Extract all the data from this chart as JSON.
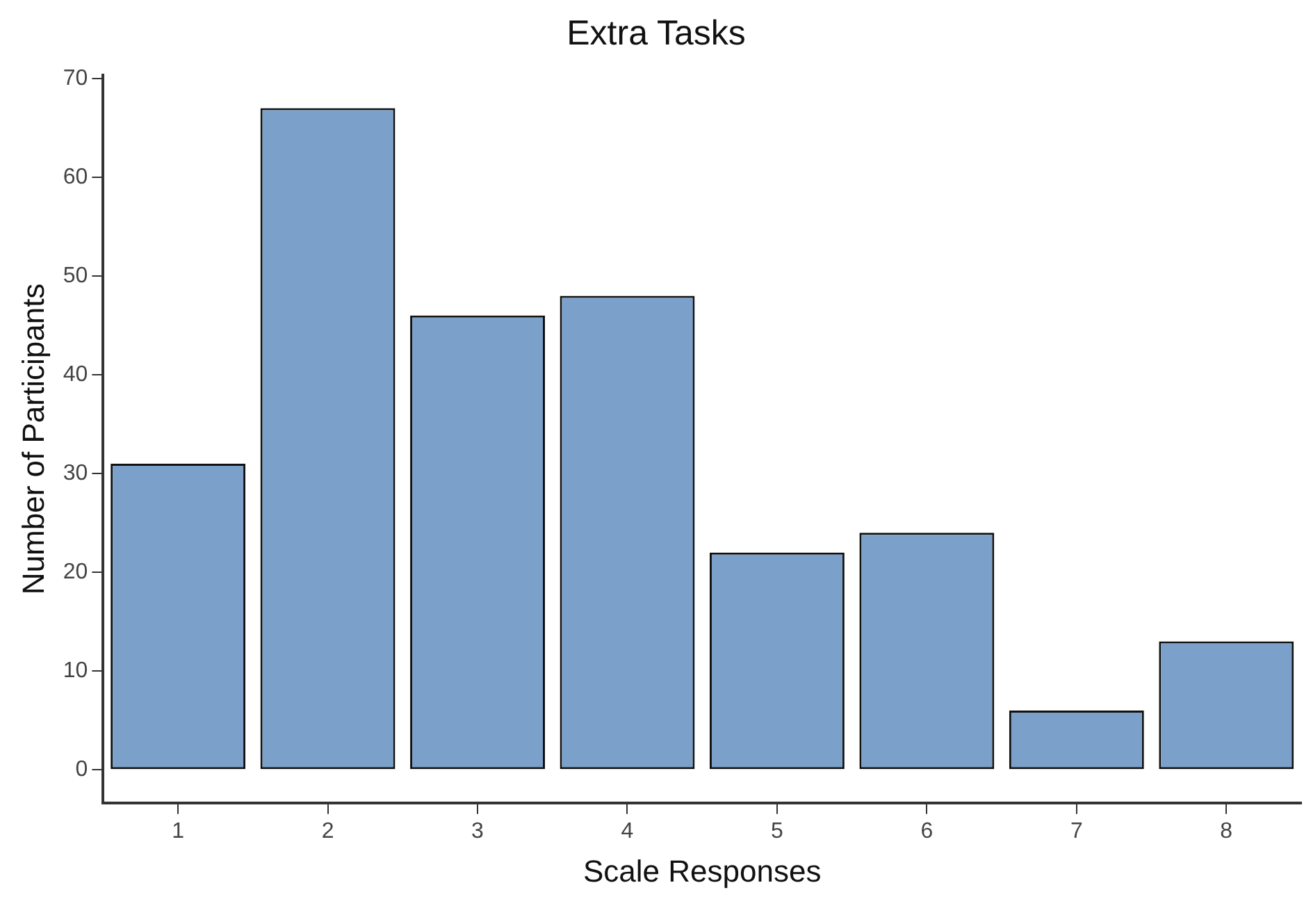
{
  "chart_data": {
    "type": "bar",
    "title": "Extra Tasks",
    "xlabel": "Scale Responses",
    "ylabel": "Number of Participants",
    "categories": [
      "1",
      "2",
      "3",
      "4",
      "5",
      "6",
      "7",
      "8"
    ],
    "values": [
      31,
      67,
      46,
      48,
      22,
      24,
      6,
      13
    ],
    "color": "#7ba0c9",
    "ylim": [
      -3.35,
      70.35
    ],
    "yticks": [
      0,
      10,
      20,
      30,
      40,
      50,
      60,
      70
    ],
    "grid": false,
    "legend": false
  }
}
